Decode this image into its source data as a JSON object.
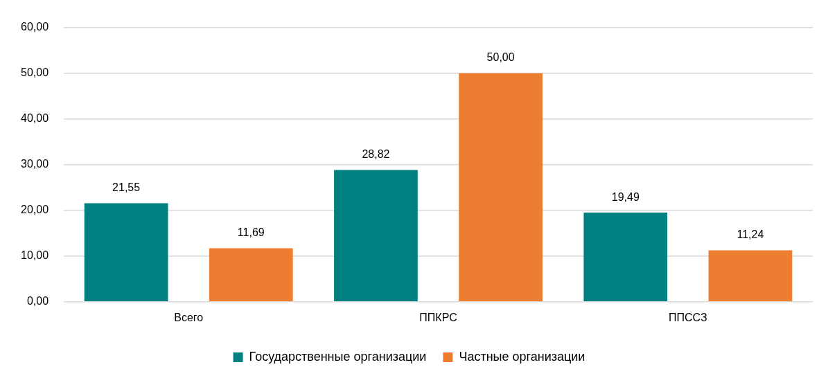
{
  "chart_data": {
    "type": "bar",
    "categories": [
      "Всего",
      "ППКРС",
      "ППССЗ"
    ],
    "series": [
      {
        "name": "Государственные организации",
        "color": "#008080",
        "values": [
          21.55,
          28.82,
          19.49
        ],
        "value_labels": [
          "21,55",
          "28,82",
          "19,49"
        ]
      },
      {
        "name": "Частные организации",
        "color": "#ed7d31",
        "values": [
          11.69,
          50.0,
          11.24
        ],
        "value_labels": [
          "11,69",
          "50,00",
          "11,24"
        ]
      }
    ],
    "ylim": [
      0,
      60
    ],
    "yticks": [
      {
        "value": 0,
        "label": "0,00"
      },
      {
        "value": 10,
        "label": "10,00"
      },
      {
        "value": 20,
        "label": "20,00"
      },
      {
        "value": 30,
        "label": "30,00"
      },
      {
        "value": 40,
        "label": "40,00"
      },
      {
        "value": 50,
        "label": "50,00"
      },
      {
        "value": 60,
        "label": "60,00"
      }
    ],
    "grid": "y",
    "legend": "bottom"
  }
}
